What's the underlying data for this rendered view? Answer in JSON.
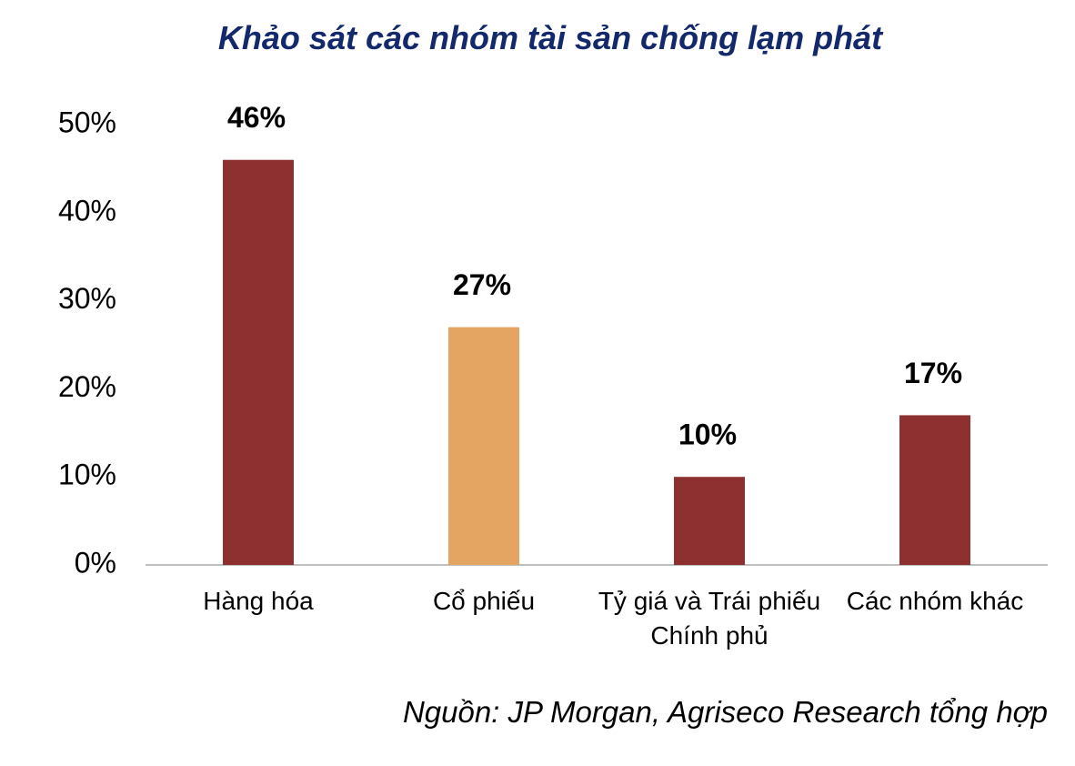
{
  "chart_data": {
    "type": "bar",
    "title": "Khảo sát các nhóm tài sản chống lạm phát",
    "categories": [
      "Hàng hóa",
      "Cổ phiếu",
      "Tỷ giá và Trái phiếu Chính phủ",
      "Các nhóm khác"
    ],
    "values": [
      46,
      27,
      10,
      17
    ],
    "value_labels": [
      "46%",
      "27%",
      "10%",
      "17%"
    ],
    "colors": [
      "#8e3030",
      "#e5a562",
      "#8e3030",
      "#8e3030"
    ],
    "ylim": [
      0,
      50
    ],
    "yticks": [
      {
        "value": 0,
        "label": "0%"
      },
      {
        "value": 10,
        "label": "10%"
      },
      {
        "value": 20,
        "label": "20%"
      },
      {
        "value": 30,
        "label": "30%"
      },
      {
        "value": 40,
        "label": "40%"
      },
      {
        "value": 50,
        "label": "50%"
      }
    ],
    "grid": false,
    "source": "Nguồn: JP Morgan, Agriseco Research tổng hợp"
  }
}
